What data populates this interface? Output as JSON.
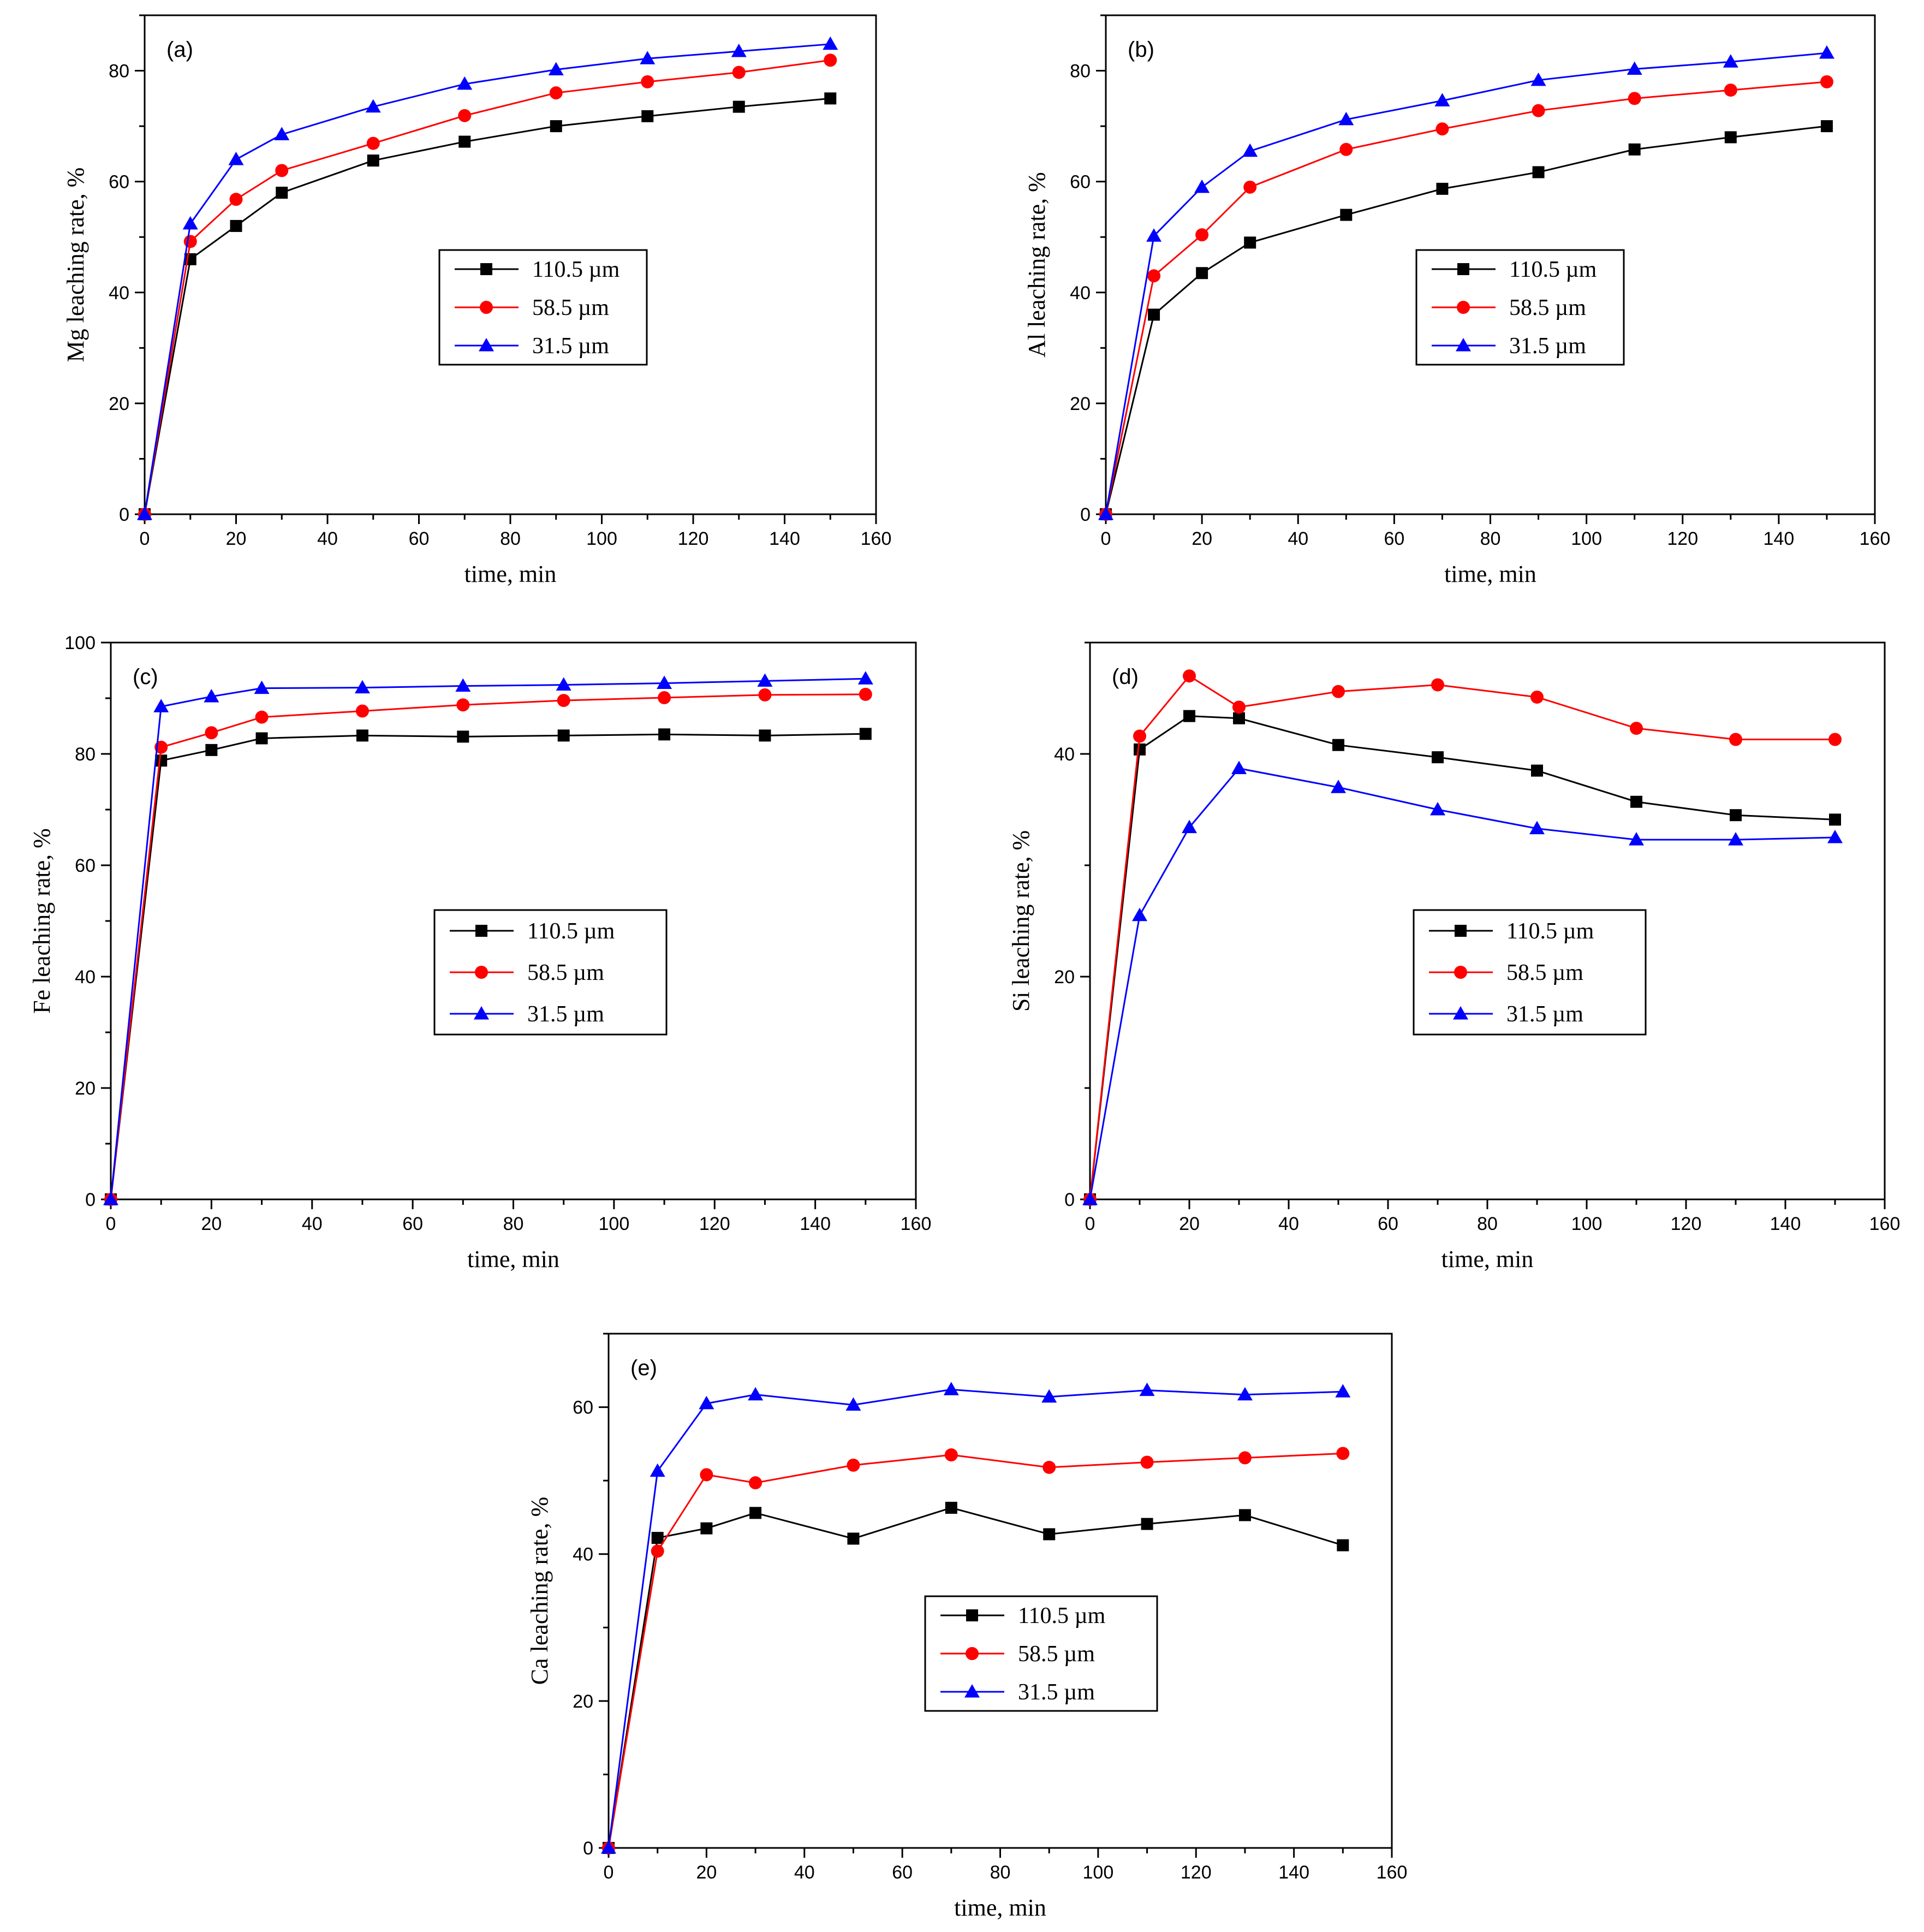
{
  "figure": {
    "legend_labels": [
      "110.5 µm",
      "58.5 µm",
      "31.5 µm"
    ],
    "series_colors": [
      "#000000",
      "#ff0000",
      "#0000ff"
    ],
    "series_markers": [
      "square",
      "circle",
      "triangle"
    ],
    "xlabel": "time, min"
  },
  "chart_data": [
    {
      "type": "line",
      "panel": "(a)",
      "title": "",
      "xlabel": "time, min",
      "ylabel": "Mg leaching rate, %",
      "xlim": [
        0,
        160
      ],
      "ylim": [
        0,
        90
      ],
      "xticks": [
        0,
        20,
        40,
        60,
        80,
        100,
        120,
        140,
        160
      ],
      "yticks": [
        0,
        20,
        40,
        60,
        80
      ],
      "legend_position": "center-right",
      "x": [
        0,
        10,
        20,
        30,
        50,
        70,
        90,
        110,
        130,
        150
      ],
      "series": [
        {
          "name": "110.5 µm",
          "values": [
            0,
            46,
            52,
            58,
            63.8,
            67.2,
            70,
            71.8,
            73.5,
            75
          ]
        },
        {
          "name": "58.5 µm",
          "values": [
            0,
            49.2,
            56.8,
            62,
            66.9,
            71.9,
            76,
            78,
            79.7,
            81.9
          ]
        },
        {
          "name": "31.5 µm",
          "values": [
            0,
            52.4,
            64,
            68.5,
            73.5,
            77.6,
            80.2,
            82.2,
            83.5,
            84.8
          ]
        }
      ]
    },
    {
      "type": "line",
      "panel": "(b)",
      "title": "",
      "xlabel": "time, min",
      "ylabel": "Al leaching rate, %",
      "xlim": [
        0,
        160
      ],
      "ylim": [
        0,
        90
      ],
      "xticks": [
        0,
        20,
        40,
        60,
        80,
        100,
        120,
        140,
        160
      ],
      "yticks": [
        0,
        20,
        40,
        60,
        80
      ],
      "legend_position": "center-right",
      "x": [
        0,
        10,
        20,
        30,
        50,
        70,
        90,
        110,
        130,
        150
      ],
      "series": [
        {
          "name": "110.5 µm",
          "values": [
            0,
            36,
            43.5,
            49,
            54,
            58.7,
            61.7,
            65.8,
            68,
            70
          ]
        },
        {
          "name": "58.5 µm",
          "values": [
            0,
            43,
            50.4,
            59,
            65.8,
            69.5,
            72.8,
            75,
            76.5,
            78
          ]
        },
        {
          "name": "31.5 µm",
          "values": [
            0,
            50.2,
            59,
            65.5,
            71.2,
            74.6,
            78.3,
            80.3,
            81.6,
            83.2
          ]
        }
      ]
    },
    {
      "type": "line",
      "panel": "(c)",
      "title": "",
      "xlabel": "time, min",
      "ylabel": "Fe leaching rate, %",
      "xlim": [
        0,
        160
      ],
      "ylim": [
        0,
        100
      ],
      "xticks": [
        0,
        20,
        40,
        60,
        80,
        100,
        120,
        140,
        160
      ],
      "yticks": [
        0,
        20,
        40,
        60,
        80,
        100
      ],
      "legend_position": "center",
      "x": [
        0,
        10,
        20,
        30,
        50,
        70,
        90,
        110,
        130,
        150
      ],
      "series": [
        {
          "name": "110.5 µm",
          "values": [
            0,
            78.8,
            80.7,
            82.8,
            83.3,
            83.1,
            83.3,
            83.5,
            83.3,
            83.6
          ]
        },
        {
          "name": "58.5 µm",
          "values": [
            0,
            81.2,
            83.8,
            86.6,
            87.7,
            88.8,
            89.6,
            90.1,
            90.6,
            90.7
          ]
        },
        {
          "name": "31.5 µm",
          "values": [
            0,
            88.5,
            90.3,
            91.8,
            91.9,
            92.2,
            92.4,
            92.7,
            93.1,
            93.5
          ]
        }
      ]
    },
    {
      "type": "line",
      "panel": "(d)",
      "title": "",
      "xlabel": "time, min",
      "ylabel": "Si leaching rate, %",
      "xlim": [
        0,
        160
      ],
      "ylim": [
        0,
        50
      ],
      "xticks": [
        0,
        20,
        40,
        60,
        80,
        100,
        120,
        140,
        160
      ],
      "yticks": [
        0,
        20,
        40
      ],
      "legend_position": "center-right",
      "x": [
        0,
        10,
        20,
        30,
        50,
        70,
        90,
        110,
        130,
        150
      ],
      "series": [
        {
          "name": "110.5 µm",
          "values": [
            0,
            40.4,
            43.4,
            43.2,
            40.8,
            39.7,
            38.5,
            35.7,
            34.5,
            34.1
          ]
        },
        {
          "name": "58.5 µm",
          "values": [
            0,
            41.6,
            47,
            44.2,
            45.6,
            46.2,
            45.1,
            42.3,
            41.3,
            41.3
          ]
        },
        {
          "name": "31.5 µm",
          "values": [
            0,
            25.5,
            33.4,
            38.7,
            37,
            35,
            33.3,
            32.3,
            32.3,
            32.5
          ]
        }
      ]
    },
    {
      "type": "line",
      "panel": "(e)",
      "title": "",
      "xlabel": "time, min",
      "ylabel": "Ca leaching rate, %",
      "xlim": [
        0,
        160
      ],
      "ylim": [
        0,
        70
      ],
      "xticks": [
        0,
        20,
        40,
        60,
        80,
        100,
        120,
        140,
        160
      ],
      "yticks": [
        0,
        20,
        40,
        60
      ],
      "legend_position": "bottom-center",
      "x": [
        0,
        10,
        20,
        30,
        50,
        70,
        90,
        110,
        130,
        150
      ],
      "series": [
        {
          "name": "110.5 µm",
          "values": [
            0,
            42.2,
            43.5,
            45.6,
            42.1,
            46.3,
            42.7,
            44.1,
            45.3,
            41.2
          ]
        },
        {
          "name": "58.5 µm",
          "values": [
            0,
            40.4,
            50.8,
            49.7,
            52.1,
            53.5,
            51.8,
            52.5,
            53.1,
            53.7
          ]
        },
        {
          "name": "31.5 µm",
          "values": [
            0,
            51.3,
            60.5,
            61.7,
            60.3,
            62.4,
            61.4,
            62.3,
            61.7,
            62.1
          ]
        }
      ]
    }
  ]
}
